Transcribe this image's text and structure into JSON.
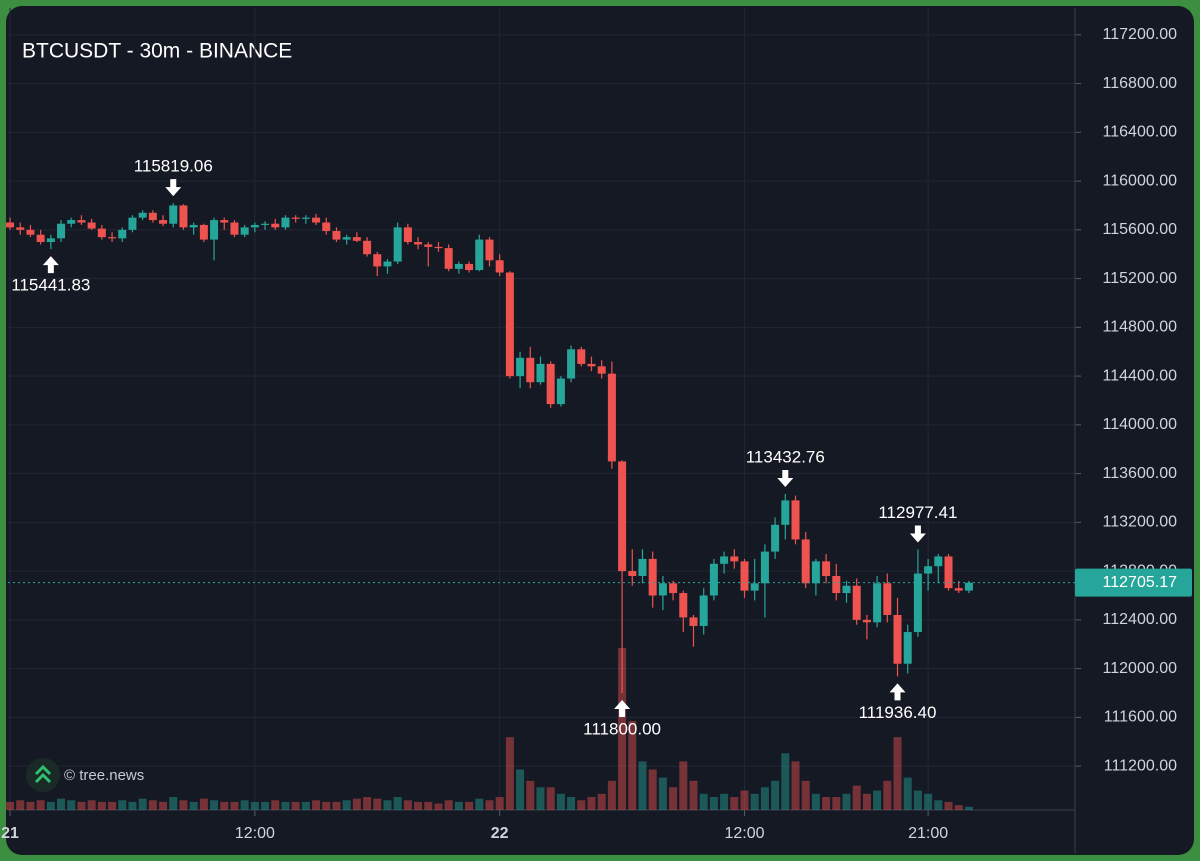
{
  "chart_data": {
    "type": "candlestick",
    "title": "BTCUSDT - 30m - BINANCE",
    "watermark": "© tree.news",
    "up_color": "#26a69a",
    "down_color": "#ef5350",
    "grid": true,
    "xlim": [
      -0.1,
      52.2
    ],
    "xticks": [
      {
        "value": 0,
        "label": "21"
      },
      {
        "value": 12,
        "label": "12:00"
      },
      {
        "value": 24,
        "label": "22"
      },
      {
        "value": 36,
        "label": "12:00"
      },
      {
        "value": 45,
        "label": "21:00"
      }
    ],
    "ylim": [
      110840,
      117420
    ],
    "yticks": [
      {
        "value": 111200,
        "label": "111200.00"
      },
      {
        "value": 111600,
        "label": "111600.00"
      },
      {
        "value": 112000,
        "label": "112000.00"
      },
      {
        "value": 112400,
        "label": "112400.00"
      },
      {
        "value": 112800,
        "label": "112800.00"
      },
      {
        "value": 113200,
        "label": "113200.00"
      },
      {
        "value": 113600,
        "label": "113600.00"
      },
      {
        "value": 114000,
        "label": "114000.00"
      },
      {
        "value": 114400,
        "label": "114400.00"
      },
      {
        "value": 114800,
        "label": "114800.00"
      },
      {
        "value": 115200,
        "label": "115200.00"
      },
      {
        "value": 115600,
        "label": "115600.00"
      },
      {
        "value": 116000,
        "label": "116000.00"
      },
      {
        "value": 116400,
        "label": "116400.00"
      },
      {
        "value": 116800,
        "label": "116800.00"
      },
      {
        "value": 117200,
        "label": "117200.00"
      }
    ],
    "x": [
      0,
      0.5,
      1,
      1.5,
      2,
      2.5,
      3,
      3.5,
      4,
      4.5,
      5,
      5.5,
      6,
      6.5,
      7,
      7.5,
      8,
      8.5,
      9,
      9.5,
      10,
      10.5,
      11,
      11.5,
      12,
      12.5,
      13,
      13.5,
      14,
      14.5,
      15,
      15.5,
      16,
      16.5,
      17,
      17.5,
      18,
      18.5,
      19,
      19.5,
      20,
      20.5,
      21,
      21.5,
      22,
      22.5,
      23,
      23.5,
      24,
      24.5,
      25,
      25.5,
      26,
      26.5,
      27,
      27.5,
      28,
      28.5,
      29,
      29.5,
      30,
      30.5,
      31,
      31.5,
      32,
      32.5,
      33,
      33.5,
      34,
      34.5,
      35,
      35.5,
      36,
      36.5,
      37,
      37.5,
      38,
      38.5,
      39,
      39.5,
      40,
      40.5,
      41,
      41.5,
      42,
      42.5,
      43,
      43.5,
      44,
      44.5,
      45,
      45.5,
      46,
      46.5,
      47
    ],
    "open": [
      115660,
      115620,
      115600,
      115560,
      115500,
      115530,
      115650,
      115680,
      115660,
      115610,
      115540,
      115530,
      115600,
      115700,
      115740,
      115680,
      115650,
      115800,
      115620,
      115640,
      115520,
      115680,
      115660,
      115560,
      115620,
      115640,
      115650,
      115620,
      115700,
      115690,
      115700,
      115660,
      115590,
      115520,
      115540,
      115510,
      115400,
      115300,
      115340,
      115620,
      115500,
      115480,
      115460,
      115450,
      115280,
      115320,
      115270,
      115520,
      115350,
      115250,
      114400,
      114550,
      114350,
      114500,
      114170,
      114380,
      114620,
      114500,
      114480,
      114420,
      113700,
      112800,
      112760,
      112900,
      112600,
      112700,
      112620,
      112420,
      112350,
      112600,
      112860,
      112920,
      112880,
      112640,
      112700,
      112960,
      113180,
      113380,
      113060,
      112700,
      112880,
      112760,
      112620,
      112680,
      112400,
      112380,
      112700,
      112440,
      112040,
      112300,
      112780,
      112840,
      112920,
      112660,
      112640
    ],
    "high": [
      115700,
      115660,
      115640,
      115600,
      115560,
      115680,
      115700,
      115720,
      115690,
      115640,
      115580,
      115620,
      115720,
      115760,
      115760,
      115720,
      115819.06,
      115810,
      115660,
      115650,
      115700,
      115700,
      115680,
      115640,
      115660,
      115670,
      115690,
      115720,
      115720,
      115720,
      115730,
      115700,
      115620,
      115560,
      115580,
      115540,
      115420,
      115360,
      115660,
      115650,
      115540,
      115500,
      115500,
      115480,
      115340,
      115340,
      115560,
      115540,
      115400,
      115260,
      114600,
      114640,
      114560,
      114520,
      114400,
      114650,
      114640,
      114560,
      114530,
      114520,
      113710,
      112980,
      112980,
      112960,
      112760,
      112720,
      112640,
      112440,
      112660,
      112900,
      112960,
      112980,
      112900,
      112900,
      113020,
      113240,
      113432.76,
      113420,
      113120,
      112900,
      112940,
      112860,
      112720,
      112740,
      112440,
      112760,
      112780,
      112580,
      112360,
      112977.41,
      112900,
      112940,
      112940,
      112720,
      112720
    ],
    "low": [
      115600,
      115560,
      115540,
      115480,
      115441.83,
      115500,
      115620,
      115640,
      115600,
      115520,
      115500,
      115500,
      115580,
      115680,
      115660,
      115630,
      115620,
      115600,
      115560,
      115500,
      115350,
      115600,
      115540,
      115540,
      115580,
      115600,
      115600,
      115600,
      115660,
      115650,
      115640,
      115560,
      115500,
      115480,
      115500,
      115380,
      115220,
      115240,
      115320,
      115480,
      115440,
      115300,
      115420,
      115260,
      115240,
      115250,
      115260,
      115300,
      115220,
      114380,
      114300,
      114300,
      114330,
      114140,
      114150,
      114350,
      114480,
      114440,
      114380,
      113640,
      111800,
      112680,
      112700,
      112500,
      112480,
      112560,
      112300,
      112180,
      112280,
      112560,
      112780,
      112820,
      112580,
      112560,
      112420,
      112900,
      113060,
      113020,
      112660,
      112600,
      112700,
      112560,
      112540,
      112360,
      112240,
      112340,
      112380,
      111936.4,
      111960,
      112260,
      112640,
      112700,
      112640,
      112620,
      112620
    ],
    "close": [
      115620,
      115600,
      115560,
      115500,
      115530,
      115650,
      115680,
      115660,
      115610,
      115540,
      115530,
      115600,
      115700,
      115740,
      115680,
      115650,
      115800,
      115620,
      115640,
      115520,
      115680,
      115660,
      115560,
      115620,
      115640,
      115650,
      115620,
      115700,
      115690,
      115700,
      115660,
      115590,
      115520,
      115540,
      115510,
      115400,
      115300,
      115340,
      115620,
      115500,
      115480,
      115460,
      115450,
      115280,
      115320,
      115270,
      115520,
      115350,
      115250,
      114400,
      114550,
      114350,
      114500,
      114170,
      114380,
      114620,
      114500,
      114480,
      114420,
      113700,
      112800,
      112760,
      112900,
      112600,
      112700,
      112620,
      112420,
      112350,
      112600,
      112860,
      112920,
      112880,
      112640,
      112700,
      112960,
      113180,
      113380,
      113060,
      112700,
      112880,
      112760,
      112620,
      112680,
      112400,
      112380,
      112700,
      112440,
      112040,
      112300,
      112780,
      112840,
      112920,
      112660,
      112640,
      112705.17
    ],
    "volume": [
      5,
      6,
      5,
      6,
      5,
      7,
      6,
      5,
      6,
      5,
      5,
      6,
      5,
      7,
      6,
      5,
      8,
      6,
      5,
      7,
      6,
      5,
      5,
      6,
      5,
      5,
      6,
      5,
      5,
      5,
      6,
      5,
      5,
      6,
      7,
      8,
      7,
      6,
      8,
      6,
      5,
      5,
      4,
      6,
      5,
      5,
      7,
      6,
      8,
      45,
      25,
      18,
      14,
      14,
      10,
      8,
      6,
      8,
      10,
      18,
      100,
      55,
      30,
      25,
      20,
      14,
      30,
      18,
      10,
      8,
      10,
      8,
      12,
      10,
      14,
      18,
      35,
      30,
      18,
      10,
      8,
      8,
      10,
      15,
      10,
      12,
      18,
      45,
      20,
      12,
      10,
      6,
      5,
      3,
      2
    ],
    "markers": [
      115441.83,
      115819.06,
      {
        "value": 111800,
        "label": "111800.00"
      },
      113432.76,
      {
        "value": 111936.4,
        "label": "111936.40"
      },
      112977.41
    ],
    "last_price": 112705.17
  }
}
